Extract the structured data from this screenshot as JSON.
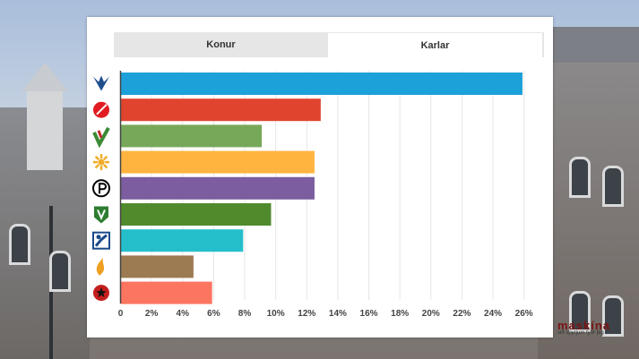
{
  "tabs": [
    {
      "label": "Konur",
      "active": false
    },
    {
      "label": "Karlar",
      "active": true
    }
  ],
  "watermark": {
    "name": "maskína",
    "tagline": "við spyrjum fyrir þig"
  },
  "chart_data": {
    "type": "bar",
    "orientation": "horizontal",
    "xlim": [
      0,
      27
    ],
    "ticks": [
      0,
      2,
      4,
      6,
      8,
      10,
      12,
      14,
      16,
      18,
      20,
      22,
      24,
      26
    ],
    "tick_labels": [
      "0",
      "2%",
      "4%",
      "6%",
      "8%",
      "10%",
      "12%",
      "14%",
      "16%",
      "18%",
      "20%",
      "22%",
      "24%",
      "26%"
    ],
    "grid": true,
    "categories": [
      {
        "icon": "falcon-icon",
        "icon_color": "#1f4e8c",
        "value": 25.9,
        "color": "#1ca1d8"
      },
      {
        "icon": "rose-icon",
        "icon_color": "#e11b22",
        "value": 12.9,
        "color": "#e0442e"
      },
      {
        "icon": "green-check-icon",
        "icon_color": "#3c8a36",
        "value": 9.1,
        "color": "#77a85a"
      },
      {
        "icon": "sun-icon",
        "icon_color": "#f0ad2a",
        "value": 12.5,
        "color": "#ffb43f"
      },
      {
        "icon": "pirate-icon",
        "icon_color": "#000000",
        "value": 12.5,
        "color": "#7c5da0"
      },
      {
        "icon": "shield-icon",
        "icon_color": "#2e7d32",
        "value": 9.7,
        "color": "#508a2d"
      },
      {
        "icon": "figure-icon",
        "icon_color": "#1a4a8a",
        "value": 7.9,
        "color": "#25bfcc"
      },
      {
        "icon": "flame-icon",
        "icon_color": "#f0a020",
        "value": 4.7,
        "color": "#9c7a52"
      },
      {
        "icon": "star-icon",
        "icon_color": "#c41e1e",
        "value": 5.9,
        "color": "#fc7560"
      }
    ]
  }
}
